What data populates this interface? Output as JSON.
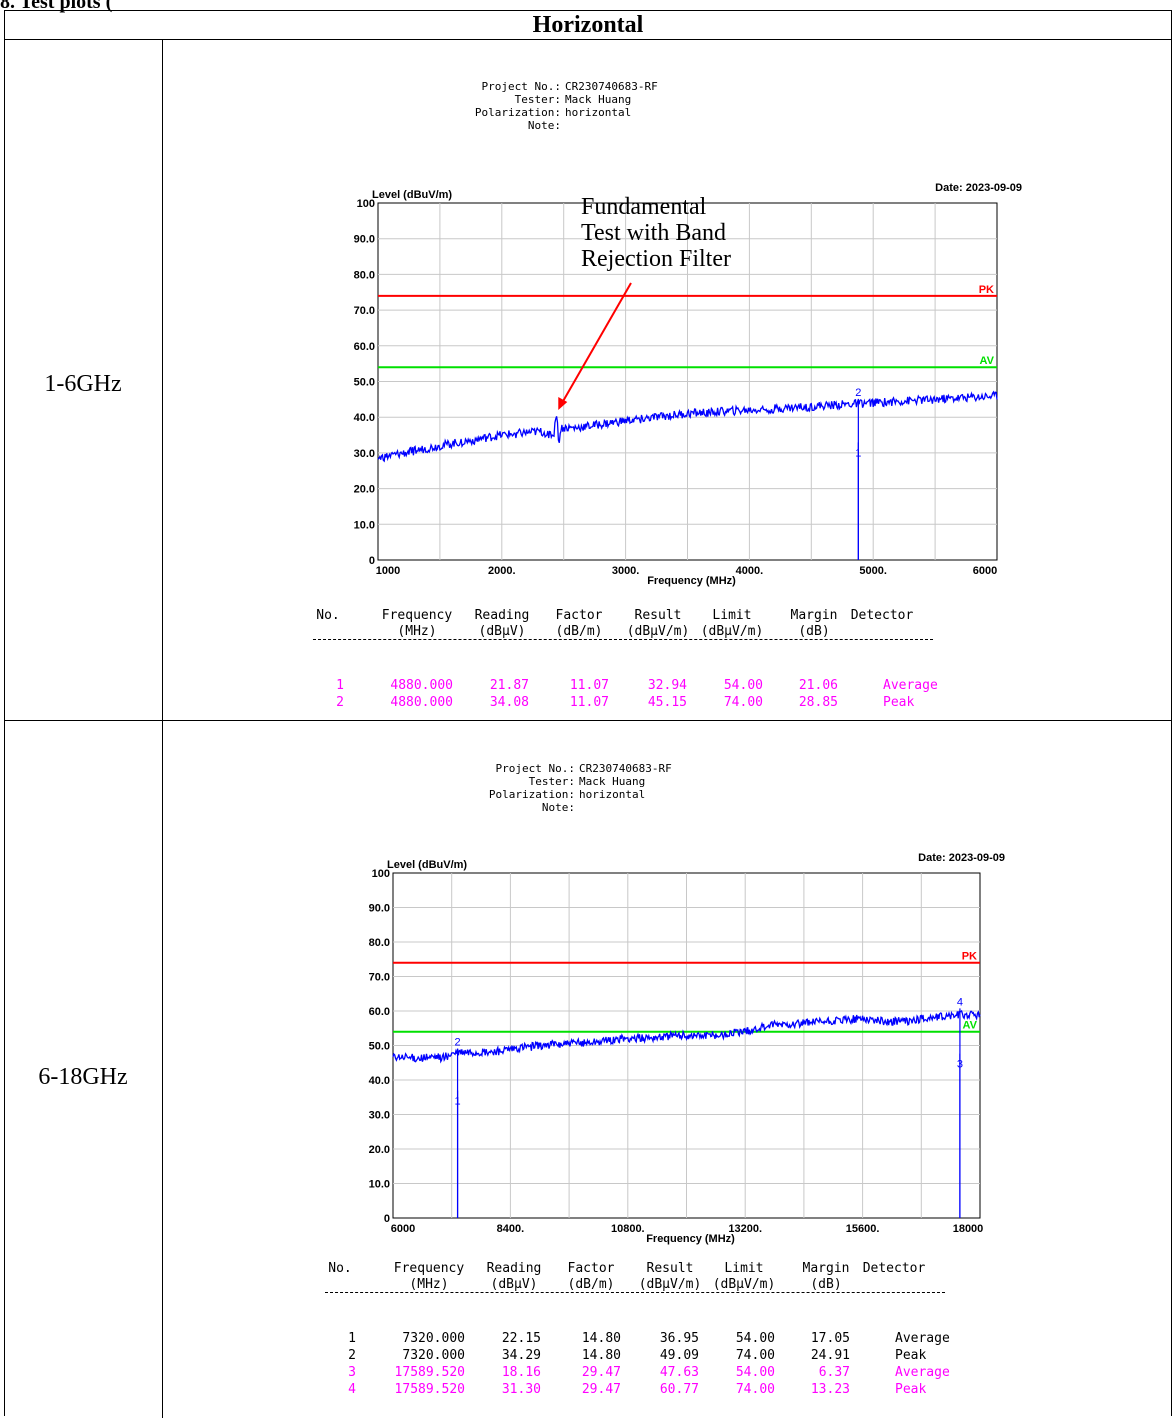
{
  "partial_title": "8. Test plots (",
  "header": "Horizontal",
  "rows": [
    {
      "label": "1-6GHz",
      "meta": {
        "project_label": "Project No.:",
        "project": "CR230740683-RF",
        "tester_label": "Tester:",
        "tester": "Mack Huang",
        "polarization_label": "Polarization:",
        "polarization": "horizontal",
        "note_label": "Note:"
      },
      "table": {
        "headers": [
          "No.",
          "Frequency",
          "Reading",
          "Factor",
          "Result",
          "Limit",
          "Margin",
          "Detector"
        ],
        "units": [
          "",
          "(MHz)",
          "(dBμV)",
          "(dB/m)",
          "(dBμV/m)",
          "(dBμV/m)",
          "(dB)",
          ""
        ],
        "rows": [
          [
            "1",
            "4880.000",
            "21.87",
            "11.07",
            "32.94",
            "54.00",
            "21.06",
            "Average"
          ],
          [
            "2",
            "4880.000",
            "34.08",
            "11.07",
            "45.15",
            "74.00",
            "28.85",
            "Peak"
          ]
        ],
        "row_colors": [
          "#ff00ff",
          "#ff00ff"
        ]
      }
    },
    {
      "label": "6-18GHz",
      "meta": {
        "project_label": "Project No.:",
        "project": "CR230740683-RF",
        "tester_label": "Tester:",
        "tester": "Mack Huang",
        "polarization_label": "Polarization:",
        "polarization": "horizontal",
        "note_label": "Note:"
      },
      "table": {
        "headers": [
          "No.",
          "Frequency",
          "Reading",
          "Factor",
          "Result",
          "Limit",
          "Margin",
          "Detector"
        ],
        "units": [
          "",
          "(MHz)",
          "(dBμV)",
          "(dB/m)",
          "(dBμV/m)",
          "(dBμV/m)",
          "(dB)",
          ""
        ],
        "rows": [
          [
            "1",
            "7320.000",
            "22.15",
            "14.80",
            "36.95",
            "54.00",
            "17.05",
            "Average"
          ],
          [
            "2",
            "7320.000",
            "34.29",
            "14.80",
            "49.09",
            "74.00",
            "24.91",
            "Peak"
          ],
          [
            "3",
            "17589.520",
            "18.16",
            "29.47",
            "47.63",
            "54.00",
            "6.37",
            "Average"
          ],
          [
            "4",
            "17589.520",
            "31.30",
            "29.47",
            "60.77",
            "74.00",
            "13.23",
            "Peak"
          ]
        ],
        "row_colors": [
          "#000000",
          "#000000",
          "#ff00ff",
          "#ff00ff"
        ]
      }
    }
  ],
  "chart_data": [
    {
      "type": "line",
      "ylabel": "Level (dBuV/m)",
      "xlabel": "Frequency (MHz)",
      "date": "Date: 2023-09-09",
      "ylim": [
        0,
        100
      ],
      "xlim": [
        1000,
        6000
      ],
      "y_ticks": [
        "100",
        "90.0",
        "80.0",
        "70.0",
        "60.0",
        "50.0",
        "40.0",
        "30.0",
        "20.0",
        "10.0",
        "0"
      ],
      "x_ticks": [
        {
          "value": 1000,
          "label": "1000"
        },
        {
          "value": 2000,
          "label": "2000."
        },
        {
          "value": 3000,
          "label": "3000."
        },
        {
          "value": 4000,
          "label": "4000."
        },
        {
          "value": 5000,
          "label": "5000."
        },
        {
          "value": 6000,
          "label": "6000"
        }
      ],
      "grid": true,
      "limits": [
        {
          "name": "PK",
          "value": 74,
          "color": "#ff0000"
        },
        {
          "name": "AV",
          "value": 54,
          "color": "#00e000"
        }
      ],
      "trace_color": "#0000ff",
      "trace_points": [
        [
          1000,
          28.5
        ],
        [
          1500,
          32
        ],
        [
          2000,
          35
        ],
        [
          2300,
          36
        ],
        [
          2420,
          35
        ],
        [
          2440,
          42
        ],
        [
          2460,
          33
        ],
        [
          2480,
          37
        ],
        [
          2600,
          37
        ],
        [
          3000,
          39
        ],
        [
          3500,
          41
        ],
        [
          4000,
          42
        ],
        [
          4500,
          43
        ],
        [
          5000,
          44
        ],
        [
          5500,
          45
        ],
        [
          6000,
          46
        ]
      ],
      "markers": [
        {
          "label": "1",
          "x": 4880,
          "y": 32.94
        },
        {
          "label": "2",
          "x": 4880,
          "y": 45.15
        }
      ],
      "annotation": [
        "Fundamental",
        "Test with Band",
        "Rejection Filter"
      ],
      "annotation_target": {
        "x": 2440,
        "y": 42
      },
      "annotation_color": "#ff0000"
    },
    {
      "type": "line",
      "ylabel": "Level (dBuV/m)",
      "xlabel": "Frequency (MHz)",
      "date": "Date: 2023-09-09",
      "ylim": [
        0,
        100
      ],
      "xlim": [
        6000,
        18000
      ],
      "y_ticks": [
        "100",
        "90.0",
        "80.0",
        "70.0",
        "60.0",
        "50.0",
        "40.0",
        "30.0",
        "20.0",
        "10.0",
        "0"
      ],
      "x_ticks": [
        {
          "value": 6000,
          "label": "6000"
        },
        {
          "value": 8400,
          "label": "8400."
        },
        {
          "value": 10800,
          "label": "10800."
        },
        {
          "value": 13200,
          "label": "13200."
        },
        {
          "value": 15600,
          "label": "15600."
        },
        {
          "value": 18000,
          "label": "18000"
        }
      ],
      "grid": true,
      "limits": [
        {
          "name": "PK",
          "value": 74,
          "color": "#ff0000"
        },
        {
          "name": "AV",
          "value": 54,
          "color": "#00e000"
        }
      ],
      "trace_color": "#0000ff",
      "trace_points": [
        [
          6000,
          46.5
        ],
        [
          7000,
          46.5
        ],
        [
          7320,
          48
        ],
        [
          8000,
          48
        ],
        [
          9000,
          50
        ],
        [
          10000,
          51
        ],
        [
          10800,
          52
        ],
        [
          12000,
          53
        ],
        [
          12600,
          53
        ],
        [
          13200,
          54
        ],
        [
          13800,
          56
        ],
        [
          15000,
          57
        ],
        [
          15600,
          58
        ],
        [
          16000,
          57
        ],
        [
          16500,
          57
        ],
        [
          17000,
          58
        ],
        [
          17589,
          59
        ],
        [
          18000,
          59
        ]
      ],
      "markers": [
        {
          "label": "1",
          "x": 7320,
          "y": 36.95
        },
        {
          "label": "2",
          "x": 7320,
          "y": 49.09
        },
        {
          "label": "3",
          "x": 17589.52,
          "y": 47.63
        },
        {
          "label": "4",
          "x": 17589.52,
          "y": 60.77
        }
      ]
    }
  ]
}
